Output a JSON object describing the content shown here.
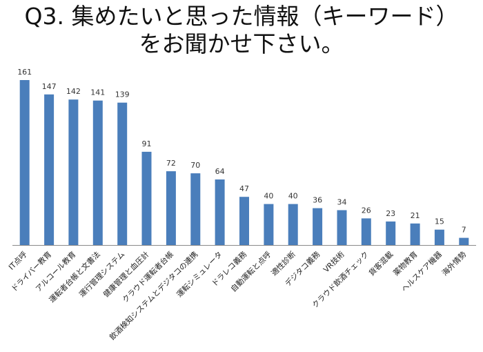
{
  "title_line1": "Q3. 集めたいと思った情報（キーワード）",
  "title_line2": "をお聞かせ下さい。",
  "colors": {
    "bar": "#4a7ebb",
    "axis": "#888888"
  },
  "chart_data": {
    "type": "bar",
    "categories": [
      "IT点呼",
      "ドライバー教育",
      "アルコール教育",
      "運転者台帳と文書法",
      "運行管理システム",
      "健康管理と血圧計",
      "クラウド運転者台帳",
      "飲酒検知システムとデジタコの連携",
      "運転シミュレータ",
      "ドラレコ義務",
      "自動運転と点呼",
      "適性診断",
      "デジタコ義務",
      "VR技術",
      "クラウド飲酒チェック",
      "貨客混載",
      "薬物教育",
      "ヘルスケア機器",
      "海外情勢"
    ],
    "values": [
      161,
      147,
      142,
      141,
      139,
      91,
      72,
      70,
      64,
      47,
      40,
      40,
      36,
      34,
      26,
      23,
      21,
      15,
      7
    ],
    "ylim": [
      0,
      161
    ],
    "grid": false,
    "legend": "none"
  }
}
